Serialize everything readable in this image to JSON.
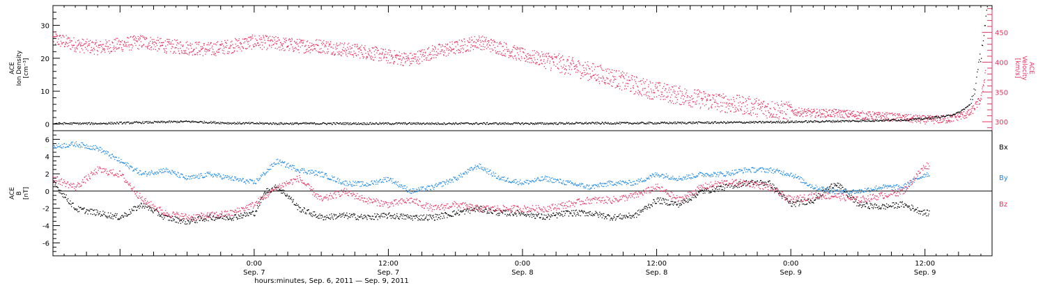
{
  "colors": {
    "density": "#000000",
    "velocity": "#e8315f",
    "bx": "#000000",
    "by": "#1e88e5",
    "bz": "#e8315f",
    "axis": "#000000"
  },
  "chart_data": [
    {
      "type": "scatter",
      "panel": "top",
      "ylabel_left": [
        "ACE",
        "Ion Density",
        "[cm⁻³]"
      ],
      "ylabel_right": [
        "ACE",
        "Velocity",
        "[km/s]"
      ],
      "x_unit": "hours since 2011-09-06 00:00",
      "xlim": [
        6,
        90
      ],
      "ylim_left": [
        -2,
        36
      ],
      "yticks_left": [
        0,
        10,
        20,
        30
      ],
      "ylim_right": [
        285,
        495
      ],
      "yticks_right": [
        300,
        350,
        400,
        450
      ],
      "series": [
        {
          "axis": "left",
          "color": "#000000",
          "x": [
            6,
            10,
            14,
            18,
            22,
            26,
            30,
            34,
            38,
            42,
            46,
            50,
            54,
            58,
            62,
            66,
            70,
            74,
            78,
            82,
            84,
            86,
            87,
            88,
            88.5,
            89,
            89.5
          ],
          "y": [
            0.3,
            0.3,
            0.6,
            0.9,
            0.4,
            0.3,
            0.3,
            0.3,
            0.3,
            0.3,
            0.3,
            0.3,
            0.4,
            0.4,
            0.5,
            0.6,
            0.7,
            0.9,
            1.1,
            1.4,
            1.8,
            2.6,
            3.6,
            6,
            12,
            22,
            34
          ]
        },
        {
          "axis": "right",
          "color": "#e8315f",
          "x": [
            6,
            8,
            10,
            12,
            14,
            16,
            18,
            20,
            22,
            24,
            26,
            28,
            30,
            32,
            34,
            36,
            38,
            40,
            42,
            44,
            46,
            48,
            50,
            52,
            54,
            56,
            58,
            60,
            62,
            64,
            66,
            68,
            70,
            72,
            74,
            76,
            78,
            80,
            82,
            84,
            86,
            88,
            89,
            89.5
          ],
          "y": [
            440,
            430,
            425,
            430,
            435,
            428,
            425,
            422,
            428,
            435,
            432,
            428,
            428,
            422,
            418,
            410,
            405,
            418,
            425,
            435,
            425,
            412,
            405,
            395,
            385,
            375,
            362,
            352,
            345,
            338,
            332,
            328,
            322,
            318,
            315,
            315,
            312,
            310,
            307,
            304,
            305,
            315,
            340,
            400
          ]
        }
      ]
    },
    {
      "type": "scatter",
      "panel": "bottom",
      "ylabel_left": [
        "ACE",
        "B",
        "[nT]"
      ],
      "xlabel": "hours:minutes, Sep.  6, 2011 — Sep.  9, 2011",
      "x_unit": "hours since 2011-09-06 00:00",
      "xlim": [
        6,
        90
      ],
      "ylim": [
        -7.5,
        7
      ],
      "yticks": [
        -6,
        -4,
        -2,
        0,
        2,
        4,
        6
      ],
      "xticks": [
        {
          "x": 24,
          "label": "0:00",
          "date": "Sep. 7"
        },
        {
          "x": 36,
          "label": "12:00",
          "date": "Sep. 7"
        },
        {
          "x": 48,
          "label": "0:00",
          "date": "Sep. 8"
        },
        {
          "x": 60,
          "label": "12:00",
          "date": "Sep. 8"
        },
        {
          "x": 72,
          "label": "0:00",
          "date": "Sep. 9"
        },
        {
          "x": 84,
          "label": "12:00",
          "date": "Sep. 9"
        }
      ],
      "legend": [
        "Bx",
        "By",
        "Bz"
      ],
      "series": [
        {
          "name": "Bx",
          "color": "#000000",
          "x": [
            6,
            8,
            10,
            12,
            14,
            16,
            18,
            20,
            22,
            24,
            25,
            26,
            27,
            28,
            30,
            32,
            34,
            36,
            38,
            40,
            42,
            44,
            46,
            48,
            50,
            52,
            54,
            56,
            58,
            60,
            62,
            64,
            66,
            68,
            70,
            72,
            74,
            76,
            78,
            80,
            82,
            84
          ],
          "y": [
            1.0,
            -2.0,
            -2.5,
            -3.0,
            -1.5,
            -3.0,
            -3.5,
            -3.0,
            -3.0,
            -2.5,
            0,
            0.5,
            -0.5,
            -2.0,
            -3.0,
            -2.8,
            -3.0,
            -2.8,
            -3.0,
            -3.0,
            -2.5,
            -2.0,
            -2.5,
            -2.5,
            -3.0,
            -2.5,
            -2.5,
            -3.0,
            -2.8,
            -1.0,
            -1.5,
            0,
            0.5,
            1.0,
            1.0,
            -1.5,
            -1.0,
            1.0,
            -1.5,
            -1.8,
            -1.5,
            -2.5
          ]
        },
        {
          "name": "By",
          "color": "#1e88e5",
          "x": [
            6,
            8,
            10,
            12,
            14,
            16,
            18,
            20,
            22,
            24,
            26,
            28,
            30,
            32,
            34,
            36,
            38,
            40,
            42,
            44,
            46,
            48,
            50,
            52,
            54,
            56,
            58,
            60,
            62,
            64,
            66,
            68,
            70,
            72,
            74,
            76,
            78,
            80,
            82,
            84
          ],
          "y": [
            5.2,
            5.5,
            5.0,
            3.5,
            2.0,
            2.5,
            1.5,
            2.0,
            1.5,
            1.0,
            3.5,
            2.5,
            2.0,
            1.0,
            0.8,
            1.5,
            0.0,
            0.5,
            1.5,
            3.0,
            1.5,
            1.0,
            1.5,
            1.0,
            0.5,
            1.0,
            1.0,
            2.0,
            1.5,
            2.0,
            2.0,
            2.5,
            2.5,
            2.0,
            0.5,
            0.0,
            0.0,
            0.5,
            0.5,
            2.0
          ]
        },
        {
          "name": "Bz",
          "color": "#e8315f",
          "x": [
            6,
            8,
            10,
            12,
            14,
            16,
            18,
            20,
            22,
            24,
            26,
            28,
            30,
            32,
            34,
            36,
            38,
            40,
            42,
            44,
            46,
            48,
            50,
            52,
            54,
            56,
            58,
            60,
            62,
            64,
            66,
            68,
            70,
            72,
            74,
            76,
            78,
            80,
            82,
            84
          ],
          "y": [
            1.5,
            0.5,
            2.5,
            2.0,
            -1.0,
            -2.5,
            -3.0,
            -2.8,
            -2.5,
            -1.5,
            0.5,
            1.5,
            -1.0,
            0.0,
            -1.0,
            -1.5,
            -1.0,
            -2.0,
            -1.5,
            -2.0,
            -2.0,
            -2.0,
            -2.0,
            -1.5,
            -1.0,
            -1.0,
            -0.5,
            0.5,
            -1.0,
            0.5,
            1.0,
            1.0,
            0.5,
            -1.0,
            -0.5,
            -0.5,
            -1.0,
            -0.5,
            0.0,
            3.0
          ]
        }
      ]
    }
  ]
}
